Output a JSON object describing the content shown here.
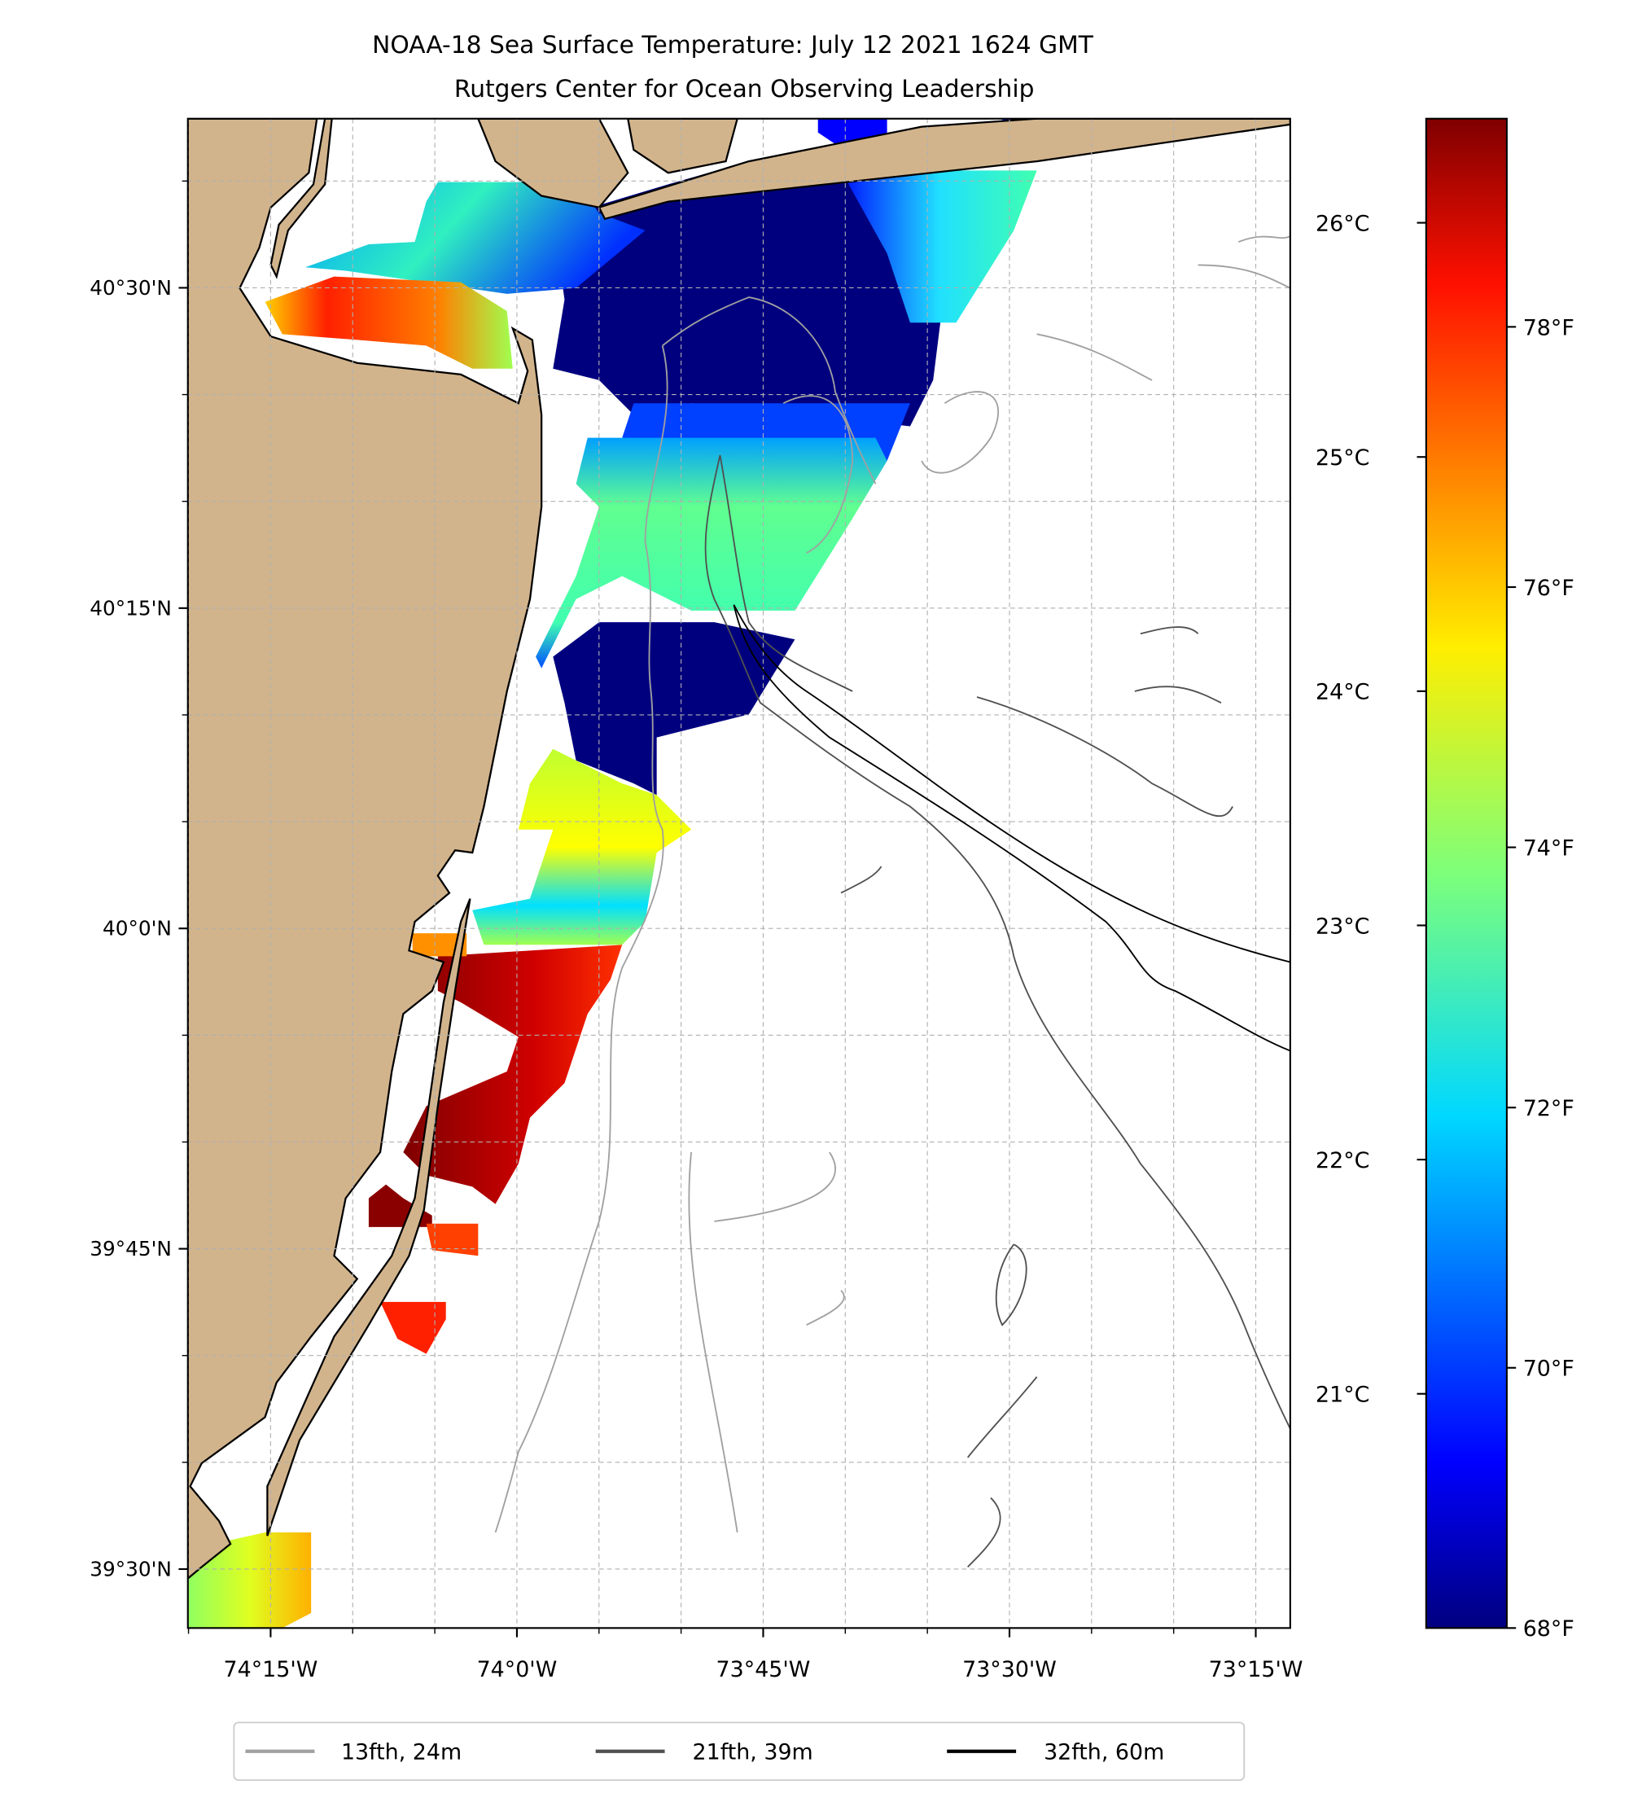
{
  "title": "NOAA-18 Sea Surface Temperature: July 12 2021 1624 GMT",
  "subtitle": "Rutgers Center for Ocean Observing Leadership",
  "map_data": {
    "type": "heatmap",
    "variable": "Sea Surface Temperature",
    "extent": {
      "lon": [
        -74.334,
        -73.215
      ],
      "lat": [
        39.454,
        40.632
      ]
    },
    "lat_ticks": [
      {
        "value": 40.5,
        "label": "40°30'N"
      },
      {
        "value": 40.25,
        "label": "40°15'N"
      },
      {
        "value": 40.0,
        "label": "40°0'N"
      },
      {
        "value": 39.75,
        "label": "39°45'N"
      },
      {
        "value": 39.5,
        "label": "39°30'N"
      }
    ],
    "lon_ticks": [
      {
        "value": -74.25,
        "label": "74°15'W"
      },
      {
        "value": -74.0,
        "label": "74°0'W"
      },
      {
        "value": -73.75,
        "label": "73°45'W"
      },
      {
        "value": -73.5,
        "label": "73°30'W"
      },
      {
        "value": -73.25,
        "label": "73°15'W"
      }
    ],
    "grid_interval_minutes": 5,
    "colorbar": {
      "colormap": "jet",
      "range_f": [
        68,
        79.6
      ],
      "f_ticks": [
        {
          "value": 68,
          "label": "68°F"
        },
        {
          "value": 70,
          "label": "70°F"
        },
        {
          "value": 72,
          "label": "72°F"
        },
        {
          "value": 74,
          "label": "74°F"
        },
        {
          "value": 76,
          "label": "76°F"
        },
        {
          "value": 78,
          "label": "78°F"
        }
      ],
      "c_ticks": [
        {
          "value": 21,
          "label": "21°C"
        },
        {
          "value": 22,
          "label": "22°C"
        },
        {
          "value": 23,
          "label": "23°C"
        },
        {
          "value": 24,
          "label": "24°C"
        },
        {
          "value": 25,
          "label": "25°C"
        },
        {
          "value": 26,
          "label": "26°C"
        }
      ]
    },
    "legend": {
      "placement": "bottom-center",
      "entries": [
        {
          "label": "13fth, 24m",
          "color": "#a0a0a0"
        },
        {
          "label": "21fth, 39m",
          "color": "#505050"
        },
        {
          "label": "32fth, 60m",
          "color": "#000000"
        }
      ]
    },
    "colors": {
      "land": "#d2b48c",
      "cold": "#00007f",
      "warm": "#7f0000"
    }
  }
}
